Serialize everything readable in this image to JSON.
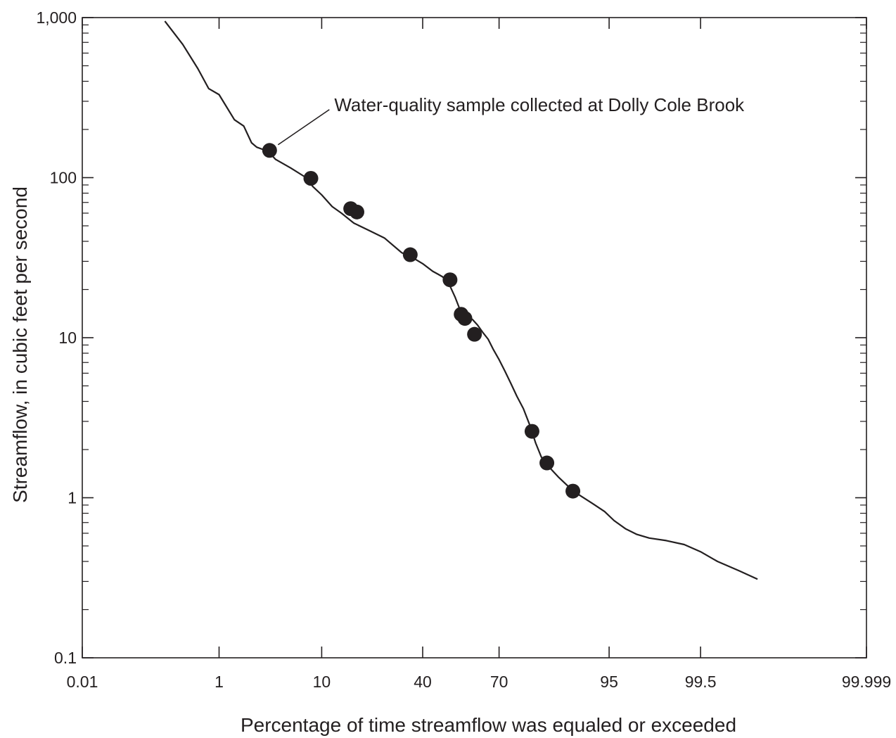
{
  "chart_data": {
    "type": "line",
    "title": "",
    "xlabel": "Percentage of time streamflow was equaled or exceeded",
    "ylabel": "Streamflow, in cubic feet per second",
    "x_scale": "probability (normal)",
    "y_scale": "log",
    "xlim": [
      0.01,
      99.999
    ],
    "ylim": [
      0.1,
      1000
    ],
    "grid": false,
    "x_ticks": [
      {
        "value": 0.01,
        "label": "0.01"
      },
      {
        "value": 1,
        "label": "1"
      },
      {
        "value": 10,
        "label": "10"
      },
      {
        "value": 40,
        "label": "40"
      },
      {
        "value": 70,
        "label": "70"
      },
      {
        "value": 95,
        "label": "95"
      },
      {
        "value": 99.5,
        "label": "99.5"
      },
      {
        "value": 99.999,
        "label": "99.999"
      }
    ],
    "y_ticks": [
      {
        "value": 0.1,
        "label": "0.1"
      },
      {
        "value": 1,
        "label": "1"
      },
      {
        "value": 10,
        "label": "10"
      },
      {
        "value": 100,
        "label": "100"
      },
      {
        "value": 1000,
        "label": "1,000"
      }
    ],
    "series": [
      {
        "kind": "line",
        "x": [
          0.2,
          0.35,
          0.55,
          0.75,
          1.0,
          1.5,
          1.9,
          2.3,
          2.6,
          3.0,
          3.3,
          3.6,
          4.0,
          5.5,
          7.5,
          8.5,
          10,
          12,
          14,
          17,
          21,
          26,
          32,
          37,
          40,
          44,
          46,
          48,
          49,
          51,
          53,
          55,
          57,
          60,
          62,
          64,
          66,
          68,
          70,
          72,
          74,
          76,
          78,
          80,
          81.5,
          83,
          85,
          87,
          89,
          91,
          93,
          94.5,
          95.5,
          96.5,
          97.3,
          98.0,
          98.7,
          99.2,
          99.5,
          99.7,
          99.85,
          99.92
        ],
        "y": [
          950,
          680,
          480,
          360,
          330,
          230,
          210,
          165,
          155,
          150,
          145,
          140,
          130,
          115,
          100,
          88,
          78,
          66,
          60,
          52,
          47,
          42,
          34,
          31,
          29,
          26,
          25,
          24,
          23,
          21,
          18,
          15,
          14,
          13,
          12,
          10.8,
          9.8,
          8.4,
          7.3,
          6.2,
          5.2,
          4.3,
          3.6,
          2.8,
          2.2,
          1.8,
          1.55,
          1.35,
          1.18,
          1.04,
          0.92,
          0.82,
          0.72,
          0.64,
          0.59,
          0.56,
          0.54,
          0.51,
          0.46,
          0.4,
          0.35,
          0.31
        ]
      },
      {
        "kind": "scatter",
        "x": [
          3.5,
          8.2,
          16.2,
          17.8,
          35.2,
          51.0,
          55.5,
          57.0,
          60.8,
          80.5,
          84.4,
          89.9
        ],
        "y": [
          148,
          99,
          64,
          61,
          33,
          23,
          14,
          13.2,
          10.5,
          2.6,
          1.65,
          1.1
        ]
      }
    ],
    "annotations": [
      {
        "text": "Water-quality sample collected at Dolly Cole Brook",
        "x": 3.5,
        "y": 148
      }
    ]
  }
}
